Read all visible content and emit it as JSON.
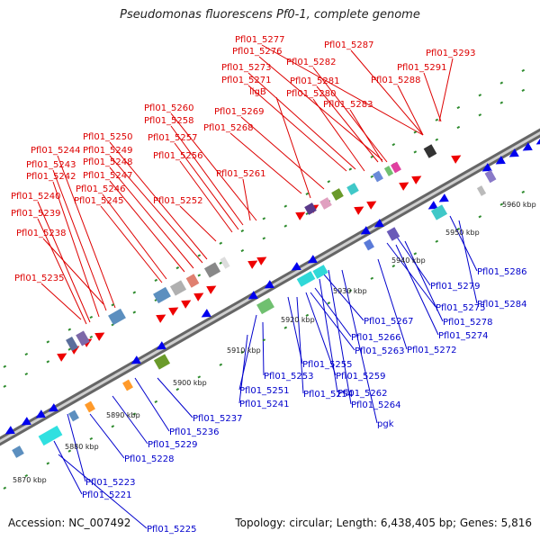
{
  "title": "Pseudomonas fluorescens Pf0-1, complete genome",
  "footer": {
    "accession": "Accession: NC_007492",
    "summary": "Topology: circular; Length: 6,438,405 bp; Genes: 5,816"
  },
  "colors": {
    "label_upper": "#dd0000",
    "label_lower": "#0000cc",
    "forward_arrow": "#ee0000",
    "reverse_arrow": "#0000ee",
    "backbone": "#8c8c8c",
    "tick": "#2e8b2e"
  },
  "kbp_ticks": [
    "5870 kbp",
    "5880 kbp",
    "5890 kbp",
    "5900 kbp",
    "5910 kbp",
    "5920 kbp",
    "5930 kbp",
    "5940 kbp",
    "5950 kbp",
    "5960 kbp"
  ],
  "upper_labels": [
    "Pfl01_5277",
    "Pfl01_5287",
    "Pfl01_5276",
    "Pfl01_5293",
    "Pfl01_5282",
    "Pfl01_5291",
    "Pfl01_5273",
    "Pfl01_5281",
    "Pfl01_5288",
    "Pfl01_5271",
    "ligB",
    "Pfl01_5280",
    "Pfl01_5283",
    "Pfl01_5260",
    "Pfl01_5269",
    "Pfl01_5258",
    "Pfl01_5268",
    "Pfl01_5250",
    "Pfl01_5257",
    "Pfl01_5244",
    "Pfl01_5249",
    "Pfl01_5256",
    "Pfl01_5243",
    "Pfl01_5248",
    "Pfl01_5242",
    "Pfl01_5247",
    "Pfl01_5261",
    "Pfl01_5246",
    "Pfl01_5240",
    "Pfl01_5245",
    "Pfl01_5252",
    "Pfl01_5239",
    "Pfl01_5238",
    "Pfl01_5235"
  ],
  "lower_labels": [
    "Pfl01_5286",
    "Pfl01_5279",
    "Pfl01_5284",
    "Pfl01_5275",
    "Pfl01_5278",
    "Pfl01_5267",
    "Pfl01_5274",
    "Pfl01_5266",
    "Pfl01_5272",
    "Pfl01_5263",
    "Pfl01_5255",
    "Pfl01_5253",
    "Pfl01_5259",
    "Pfl01_5251",
    "Pfl01_5254",
    "Pfl01_5262",
    "Pfl01_5241",
    "Pfl01_5264",
    "pgk",
    "Pfl01_5237",
    "Pfl01_5236",
    "Pfl01_5229",
    "Pfl01_5228",
    "Pfl01_5223",
    "Pfl01_5221",
    "Pfl01_5225"
  ]
}
